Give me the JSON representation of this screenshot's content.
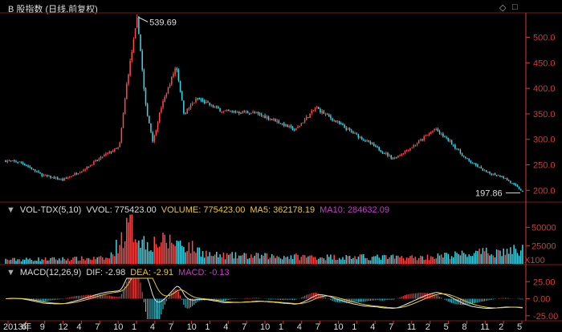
{
  "window": {
    "title": "B 股指数 (日线,前复权)"
  },
  "toolbar": {
    "diamond_icon": "diamond-icon",
    "square_icon": "square-icon"
  },
  "price_panel": {
    "y_ticks": [
      "500.0",
      "450.0",
      "400.0",
      "350.0",
      "300.0",
      "250.0",
      "200.0"
    ],
    "y_tick_values": [
      500,
      450,
      400,
      350,
      300,
      250,
      200
    ],
    "high_label": "539.69",
    "low_label": "197.86",
    "colors": {
      "up": "#ff4a4a",
      "down": "#3ad6e6",
      "axis": "#d23a3a"
    }
  },
  "vol_panel": {
    "name": "VOL-TDX(5,10)",
    "vvol": "VVOL: 775423.00",
    "volume": "VOLUME: 775423.00",
    "ma5": "MA5: 362178.19",
    "ma10": "MA10: 284632.09",
    "y_ticks": [
      "50000",
      "25000",
      "X100"
    ],
    "colors": {
      "volume": "#e6c83a",
      "ma5": "#e6c83a",
      "ma10": "#c040c0"
    }
  },
  "macd_panel": {
    "name": "MACD(12,26,9)",
    "dif": "DIF: -2.98",
    "dea": "DEA: -2.91",
    "macd": "MACD: -0.13",
    "y_ticks": [
      "25.00",
      "0.00",
      "-25.00"
    ],
    "colors": {
      "dif": "#e6e6e6",
      "dea": "#e6c83a",
      "macd": "#c040c0"
    }
  },
  "x_axis": {
    "labels": [
      "2013年",
      "6",
      "9",
      "12",
      "4",
      "7",
      "10",
      "1",
      "4",
      "7",
      "10",
      "1",
      "4",
      "7",
      "10",
      "1",
      "4",
      "7",
      "10",
      "1",
      "4",
      "7",
      "11",
      "2",
      "5",
      "8",
      "11",
      "2",
      "5"
    ]
  },
  "chart_data": {
    "type": "candlestick",
    "title": "B 股指数 (日线,前复权)",
    "price_range": [
      197.86,
      539.69
    ],
    "ylim": [
      180,
      545
    ],
    "key_points": [
      {
        "t": 0.0,
        "close": 258
      },
      {
        "t": 0.03,
        "close": 255
      },
      {
        "t": 0.07,
        "close": 230
      },
      {
        "t": 0.11,
        "close": 220
      },
      {
        "t": 0.15,
        "close": 240
      },
      {
        "t": 0.19,
        "close": 268
      },
      {
        "t": 0.22,
        "close": 285
      },
      {
        "t": 0.235,
        "close": 415
      },
      {
        "t": 0.255,
        "close": 539.69
      },
      {
        "t": 0.27,
        "close": 370
      },
      {
        "t": 0.285,
        "close": 295
      },
      {
        "t": 0.3,
        "close": 360
      },
      {
        "t": 0.33,
        "close": 445
      },
      {
        "t": 0.345,
        "close": 350
      },
      {
        "t": 0.37,
        "close": 380
      },
      {
        "t": 0.42,
        "close": 355
      },
      {
        "t": 0.48,
        "close": 352
      },
      {
        "t": 0.52,
        "close": 338
      },
      {
        "t": 0.56,
        "close": 318
      },
      {
        "t": 0.6,
        "close": 362
      },
      {
        "t": 0.66,
        "close": 320
      },
      {
        "t": 0.7,
        "close": 295
      },
      {
        "t": 0.75,
        "close": 262
      },
      {
        "t": 0.79,
        "close": 288
      },
      {
        "t": 0.83,
        "close": 320
      },
      {
        "t": 0.86,
        "close": 295
      },
      {
        "t": 0.89,
        "close": 262
      },
      {
        "t": 0.93,
        "close": 235
      },
      {
        "t": 0.96,
        "close": 228
      },
      {
        "t": 1.0,
        "close": 197.86
      }
    ],
    "volume_key_points": [
      {
        "t": 0.0,
        "v": 6000
      },
      {
        "t": 0.2,
        "v": 8000
      },
      {
        "t": 0.24,
        "v": 55000
      },
      {
        "t": 0.27,
        "v": 30000
      },
      {
        "t": 0.33,
        "v": 32000
      },
      {
        "t": 0.4,
        "v": 12000
      },
      {
        "t": 0.6,
        "v": 10000
      },
      {
        "t": 0.8,
        "v": 9000
      },
      {
        "t": 1.0,
        "v": 20000
      }
    ],
    "vol_ylim": [
      0,
      65000
    ],
    "macd_ylim": [
      -30,
      30
    ]
  }
}
